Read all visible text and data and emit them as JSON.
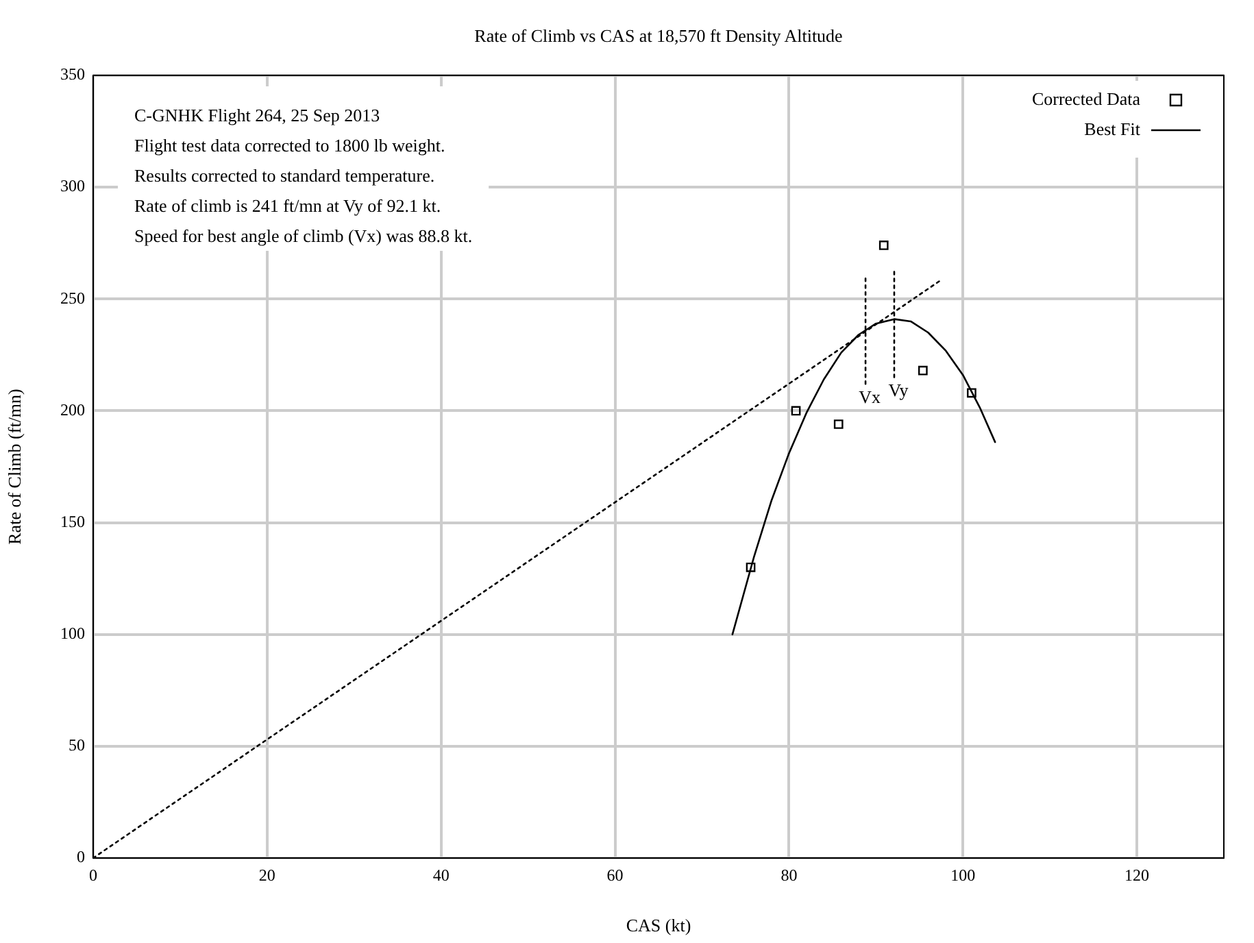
{
  "chart_data": {
    "type": "scatter",
    "title": "Rate of Climb vs CAS at 18,570 ft Density Altitude",
    "xlabel": "CAS (kt)",
    "ylabel": "Rate of Climb (ft/mn)",
    "xlim": [
      0,
      130
    ],
    "xticks": [
      0,
      20,
      40,
      60,
      80,
      100,
      120
    ],
    "ylim": [
      0,
      350
    ],
    "yticks": [
      0,
      50,
      100,
      150,
      200,
      250,
      300,
      350
    ],
    "grid": true,
    "legend": "top right",
    "series": [
      {
        "name": "Corrected Data",
        "marker": "square",
        "color": "#000000",
        "x": [
          75.6,
          80.8,
          85.7,
          90.9,
          95.4,
          101
        ],
        "values": [
          130,
          200,
          194,
          274,
          218,
          208
        ]
      },
      {
        "name": "Best Fit",
        "type": "line",
        "marker": "none",
        "line_style": "solid",
        "color": "#000000",
        "x": [
          73.5,
          76,
          78,
          80,
          82,
          84,
          86,
          88,
          90,
          92.1,
          94,
          96,
          98,
          100,
          102,
          103.7
        ],
        "values": [
          100,
          135,
          160,
          181,
          199,
          214,
          226,
          234,
          239,
          241,
          240,
          235,
          227,
          216,
          201,
          186
        ]
      },
      {
        "type": "line",
        "marker": "none",
        "line_style": "dotted",
        "color": "#000000",
        "x": [
          0,
          97.3
        ],
        "values": [
          0,
          258
        ]
      },
      {
        "type": "line",
        "marker": "none",
        "line_style": "dotted",
        "color": "#000000",
        "x": [
          88.8,
          88.8
        ],
        "values": [
          212,
          260
        ]
      },
      {
        "type": "line",
        "marker": "none",
        "line_style": "dotted",
        "color": "#000000",
        "x": [
          92.1,
          92.1
        ],
        "values": [
          215,
          264
        ]
      }
    ],
    "annotations": [
      "C-GNHK Flight 264, 25 Sep 2013",
      "Flight test data corrected to 1800 lb weight.",
      "Results corrected to standard temperature.",
      "Rate of climb is 241 ft/mn at Vy of 92.1 kt.",
      "Speed for best angle of climb (Vx) was 88.8 kt.",
      {
        "text": "Vx",
        "x": 88.8,
        "y": 212
      },
      {
        "text": "Vy",
        "x": 92.1,
        "y": 215
      }
    ]
  }
}
